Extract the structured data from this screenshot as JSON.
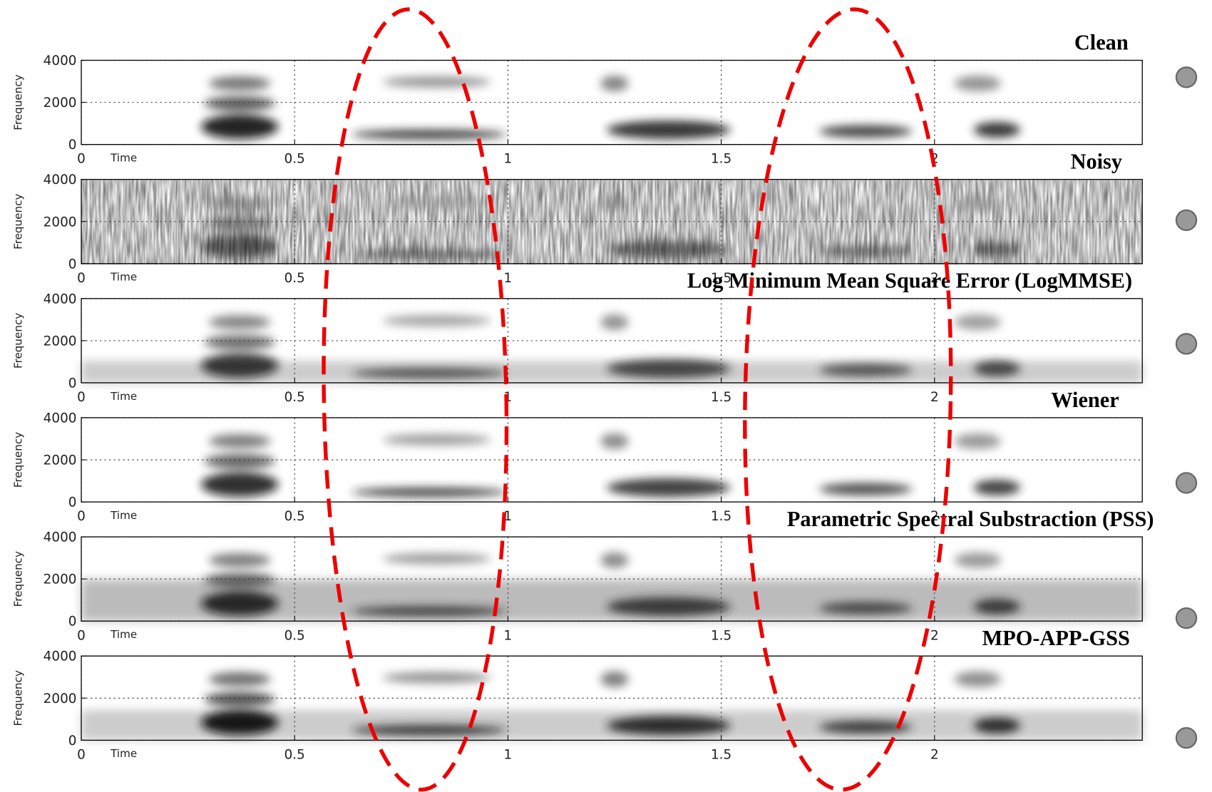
{
  "chart_data": [
    {
      "type": "spectrogram",
      "title": "Clean",
      "xlabel": "Time",
      "ylabel": "Frequency",
      "xlim": [
        0,
        2.487
      ],
      "ylim": [
        0,
        4000
      ],
      "xticks": [
        0,
        0.5,
        1,
        1.5,
        2
      ],
      "yticks": [
        0,
        2000,
        4000
      ],
      "grid": true
    },
    {
      "type": "spectrogram",
      "title": "Noisy",
      "xlabel": "Time",
      "ylabel": "Frequency",
      "xlim": [
        0,
        2.487
      ],
      "ylim": [
        0,
        4000
      ],
      "xticks": [
        0,
        0.5,
        1,
        1.5,
        2
      ],
      "yticks": [
        0,
        2000,
        4000
      ],
      "grid": true
    },
    {
      "type": "spectrogram",
      "title": "Log Minimum Mean Square Error (LogMMSE)",
      "xlabel": "Time",
      "ylabel": "Frequency",
      "xlim": [
        0,
        2.487
      ],
      "ylim": [
        0,
        4000
      ],
      "xticks": [
        0,
        0.5,
        1,
        1.5,
        2
      ],
      "yticks": [
        0,
        2000,
        4000
      ],
      "grid": true
    },
    {
      "type": "spectrogram",
      "title": "Wiener",
      "xlabel": "Time",
      "ylabel": "Frequency",
      "xlim": [
        0,
        2.487
      ],
      "ylim": [
        0,
        4000
      ],
      "xticks": [
        0,
        0.5,
        1,
        1.5,
        2
      ],
      "yticks": [
        0,
        2000,
        4000
      ],
      "grid": true
    },
    {
      "type": "spectrogram",
      "title": "Parametric Spectral Substraction (PSS)",
      "xlabel": "Time",
      "ylabel": "Frequency",
      "xlim": [
        0,
        2.487
      ],
      "ylim": [
        0,
        4000
      ],
      "xticks": [
        0,
        0.5,
        1,
        1.5,
        2
      ],
      "yticks": [
        0,
        2000,
        4000
      ],
      "grid": true
    },
    {
      "type": "spectrogram",
      "title": "MPO-APP-GSS",
      "xlabel": "Time",
      "ylabel": "Frequency",
      "xlim": [
        0,
        2.487
      ],
      "ylim": [
        0,
        4000
      ],
      "xticks": [
        0,
        0.5,
        1,
        1.5,
        2
      ],
      "yticks": [
        0,
        2000,
        4000
      ],
      "grid": true
    }
  ]
}
